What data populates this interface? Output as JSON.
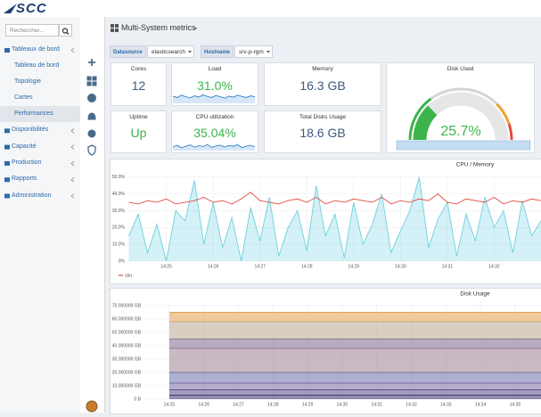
{
  "header": {
    "logo": "SCC"
  },
  "sidebar": {
    "search_placeholder": "Rechercher...",
    "menu": [
      {
        "label": "Tableaux de bord",
        "children": [
          "Tableau de bord",
          "Topologie",
          "Cartes",
          "Performances"
        ]
      },
      {
        "label": "Disponibilités"
      },
      {
        "label": "Capacité"
      },
      {
        "label": "Production"
      },
      {
        "label": "Rapports"
      },
      {
        "label": "Administration"
      }
    ]
  },
  "dashboard": {
    "title": "Multi-System metrics",
    "variables": [
      {
        "label": "Datasource",
        "value": "elasticsearch"
      },
      {
        "label": "Hostname",
        "value": "srv-p-rgm"
      }
    ],
    "stats": [
      {
        "title": "Cores",
        "value": "12",
        "color": "#3d5a80"
      },
      {
        "title": "Load",
        "value": "31.0%",
        "color": "#3cb44b",
        "spark": [
          22,
          18,
          25,
          20,
          17,
          23,
          19,
          26,
          21,
          18,
          24,
          20,
          16,
          22,
          19,
          25,
          21,
          18,
          23,
          20
        ],
        "spark_ylim": [
          0,
          60
        ]
      },
      {
        "title": "Memory",
        "value": "16.3 GB",
        "color": "#3d5a80"
      },
      {
        "title": "Uptime",
        "value": "Up",
        "color": "#3cb44b"
      },
      {
        "title": "CPU utilization",
        "value": "35.04%",
        "color": "#3cb44b",
        "spark": [
          20,
          28,
          15,
          24,
          30,
          18,
          26,
          22,
          32,
          17,
          25,
          29,
          19,
          27,
          23,
          31,
          16,
          24,
          28,
          21
        ],
        "spark_ylim": [
          0,
          100
        ]
      },
      {
        "title": "Total Disks Usage",
        "value": "18.6 GB",
        "color": "#3d5a80"
      }
    ],
    "gauge": {
      "title": "Disk Used",
      "value": 25.7,
      "value_label": "25.7%",
      "min": 0,
      "max": 100,
      "color": "#3cb44b",
      "bands": [
        {
          "from": 0,
          "to": 30,
          "color": "#3cb44b"
        },
        {
          "from": 30,
          "to": 75,
          "color": "#d4d4d4"
        },
        {
          "from": 75,
          "to": 90,
          "color": "#f0a030"
        },
        {
          "from": 90,
          "to": 100,
          "color": "#e24d42"
        }
      ]
    }
  },
  "chart_data": [
    {
      "type": "line",
      "title": "CPU / Memory",
      "x": [
        24.2,
        24.4,
        24.6,
        24.8,
        25.0,
        25.2,
        25.4,
        25.6,
        25.8,
        26.0,
        26.2,
        26.4,
        26.6,
        26.8,
        27.0,
        27.2,
        27.4,
        27.6,
        27.8,
        28.0,
        28.2,
        28.4,
        28.6,
        28.8,
        29.0,
        29.2,
        29.4,
        29.6,
        29.8,
        30.0,
        30.2,
        30.4,
        30.6,
        30.8,
        31.0,
        31.2,
        31.4,
        31.6,
        31.8,
        32.0,
        32.2,
        32.4,
        32.6,
        32.8,
        33.0
      ],
      "series": [
        {
          "name": "cpu",
          "color": "#e24d42",
          "values": [
            35,
            34,
            36,
            35,
            37,
            34,
            35,
            36,
            38,
            35,
            36,
            34,
            37,
            41,
            36,
            35,
            34,
            36,
            37,
            35,
            38,
            34,
            36,
            35,
            37,
            36,
            35,
            38,
            34,
            36,
            35,
            37,
            36,
            40,
            35,
            34,
            37,
            36,
            35,
            38,
            34,
            36,
            35,
            37,
            36
          ]
        },
        {
          "color": "#6ed0e0",
          "values": [
            15,
            28,
            5,
            22,
            0,
            30,
            24,
            48,
            10,
            35,
            8,
            26,
            0,
            32,
            12,
            38,
            3,
            20,
            30,
            6,
            45,
            15,
            28,
            2,
            35,
            10,
            22,
            40,
            5,
            18,
            30,
            50,
            8,
            25,
            35,
            3,
            28,
            12,
            38,
            20,
            30,
            5,
            36,
            15,
            24
          ]
        }
      ],
      "xlim": [
        24.17,
        33.0
      ],
      "xticks": [
        {
          "value": 25,
          "label": "14:25"
        },
        {
          "value": 26,
          "label": "14:26"
        },
        {
          "value": 27,
          "label": "14:27"
        },
        {
          "value": 28,
          "label": "14:28"
        },
        {
          "value": 29,
          "label": "14:29"
        },
        {
          "value": 30,
          "label": "14:30"
        },
        {
          "value": 31,
          "label": "14:31"
        },
        {
          "value": 32,
          "label": "14:32"
        }
      ],
      "ylim": [
        0,
        52
      ],
      "yticks": [
        {
          "value": 0,
          "label": "0%"
        },
        {
          "value": 10,
          "label": "10.0%"
        },
        {
          "value": 20,
          "label": "20.0%"
        },
        {
          "value": 30,
          "label": "30.0%"
        },
        {
          "value": 40,
          "label": "40.0%"
        },
        {
          "value": 50,
          "label": "50.0%"
        }
      ],
      "grid": true
    },
    {
      "type": "stacked_area",
      "title": "Disk Usage",
      "series": [
        {
          "color": "#3b2e6e",
          "x": [
            25,
            35.75
          ],
          "values": [
            3,
            3
          ]
        },
        {
          "color": "#5a4a8a",
          "x": [
            25,
            35.75
          ],
          "values": [
            4,
            4
          ]
        },
        {
          "color": "#7a6aa0",
          "x": [
            25,
            35.75
          ],
          "values": [
            5,
            5
          ]
        },
        {
          "color": "#6b6faa",
          "x": [
            25,
            35.75
          ],
          "values": [
            8,
            8
          ]
        },
        {
          "color": "#9a8090",
          "x": [
            25,
            35.75
          ],
          "values": [
            18,
            18
          ]
        },
        {
          "color": "#7d6890",
          "x": [
            25,
            35.75
          ],
          "values": [
            7,
            7
          ]
        },
        {
          "color": "#b8a890",
          "x": [
            25,
            35.75
          ],
          "values": [
            13,
            13
          ]
        },
        {
          "color": "#e5a050",
          "x": [
            25,
            35.75
          ],
          "values": [
            7,
            7
          ]
        }
      ],
      "xlim": [
        24.28,
        35.75
      ],
      "xticks": [
        {
          "value": 25,
          "label": "14:25"
        },
        {
          "value": 26,
          "label": "14:26"
        },
        {
          "value": 27,
          "label": "14:27"
        },
        {
          "value": 28,
          "label": "14:28"
        },
        {
          "value": 29,
          "label": "14:29"
        },
        {
          "value": 30,
          "label": "14:30"
        },
        {
          "value": 31,
          "label": "14:31"
        },
        {
          "value": 32,
          "label": "14:32"
        },
        {
          "value": 33,
          "label": "14:33"
        },
        {
          "value": 34,
          "label": "14:34"
        },
        {
          "value": 35,
          "label": "14:35"
        }
      ],
      "ylim": [
        0,
        73
      ],
      "yticks": [
        {
          "value": 0,
          "label": "0 B"
        },
        {
          "value": 10,
          "label": "10.000000 GB"
        },
        {
          "value": 20,
          "label": "20.000000 GB"
        },
        {
          "value": 30,
          "label": "30.000000 GB"
        },
        {
          "value": 40,
          "label": "40.000000 GB"
        },
        {
          "value": 50,
          "label": "50.000000 GB"
        },
        {
          "value": 60,
          "label": "60.000000 GB"
        },
        {
          "value": 70,
          "label": "70.000000 GB"
        }
      ],
      "grid": true
    }
  ]
}
